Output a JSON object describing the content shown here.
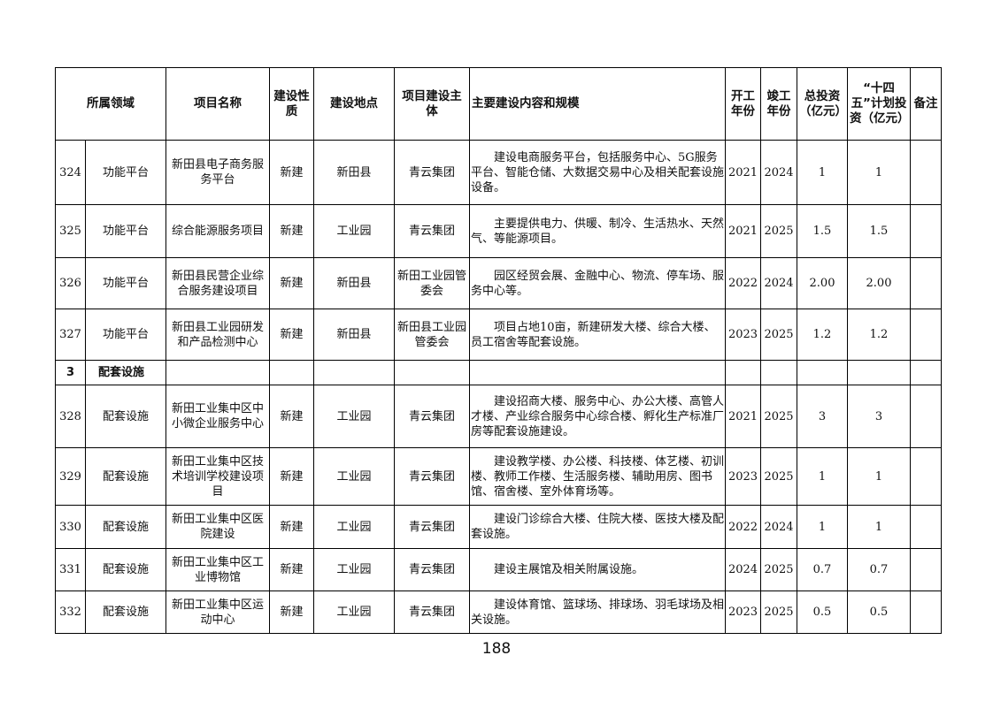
{
  "header": {
    "field": "所属领域",
    "name": "项目名称",
    "nature": "建设性质",
    "location": "建设地点",
    "owner": "项目建设主体",
    "content": "主要建设内容和规模",
    "start": "开工年份",
    "end": "竣工年份",
    "total": "总投资（亿元）",
    "plan": "“十四五”计划投资（亿元）",
    "remark": "备注"
  },
  "rows_a": [
    {
      "no": "324",
      "field": "功能平台",
      "name": "新田县电子商务服务平台",
      "nature": "新建",
      "location": "新田县",
      "owner": "青云集团",
      "content": "建设电商服务平台，包括服务中心、5G服务平台、智能仓储、大数据交易中心及相关配套设施设备。",
      "start": "2021",
      "end": "2024",
      "total": "1",
      "plan": "1",
      "remark": ""
    },
    {
      "no": "325",
      "field": "功能平台",
      "name": "综合能源服务项目",
      "nature": "新建",
      "location": "工业园",
      "owner": "青云集团",
      "content": "主要提供电力、供暖、制冷、生活热水、天然气、等能源项目。",
      "start": "2021",
      "end": "2025",
      "total": "1.5",
      "plan": "1.5",
      "remark": ""
    },
    {
      "no": "326",
      "field": "功能平台",
      "name": "新田县民营企业综合服务建设项目",
      "nature": "新建",
      "location": "新田县",
      "owner": "新田工业园管委会",
      "content": "园区经贸会展、金融中心、物流、停车场、服务中心等。",
      "start": "2022",
      "end": "2024",
      "total": "2.00",
      "plan": "2.00",
      "remark": ""
    },
    {
      "no": "327",
      "field": "功能平台",
      "name": "新田县工业园研发和产品检测中心",
      "nature": "新建",
      "location": "新田县",
      "owner": "新田县工业园管委会",
      "content": "项目占地10亩，新建研发大楼、综合大楼、员工宿舍等配套设施。",
      "start": "2023",
      "end": "2025",
      "total": "1.2",
      "plan": "1.2",
      "remark": ""
    }
  ],
  "section": {
    "no": "3",
    "name": "配套设施"
  },
  "rows_b": [
    {
      "no": "328",
      "field": "配套设施",
      "name": "新田工业集中区中小微企业服务中心",
      "nature": "新建",
      "location": "工业园",
      "owner": "青云集团",
      "content": "建设招商大楼、服务中心、办公大楼、高管人才楼、产业综合服务中心综合楼、孵化生产标准厂房等配套设施建设。",
      "start": "2021",
      "end": "2025",
      "total": "3",
      "plan": "3",
      "remark": ""
    },
    {
      "no": "329",
      "field": "配套设施",
      "name": "新田工业集中区技术培训学校建设项目",
      "nature": "新建",
      "location": "工业园",
      "owner": "青云集团",
      "content": "建设教学楼、办公楼、科技楼、体艺楼、初训楼、教师工作楼、生活服务楼、辅助用房、图书馆、宿舍楼、室外体育场等。",
      "start": "2023",
      "end": "2025",
      "total": "1",
      "plan": "1",
      "remark": ""
    },
    {
      "no": "330",
      "field": "配套设施",
      "name": "新田工业集中区医院建设",
      "nature": "新建",
      "location": "工业园",
      "owner": "青云集团",
      "content": "建设门诊综合大楼、住院大楼、医技大楼及配套设施。",
      "start": "2022",
      "end": "2024",
      "total": "1",
      "plan": "1",
      "remark": ""
    },
    {
      "no": "331",
      "field": "配套设施",
      "name": "新田工业集中区工业博物馆",
      "nature": "新建",
      "location": "工业园",
      "owner": "青云集团",
      "content": "建设主展馆及相关附属设施。",
      "start": "2024",
      "end": "2025",
      "total": "0.7",
      "plan": "0.7",
      "remark": ""
    },
    {
      "no": "332",
      "field": "配套设施",
      "name": "新田工业集中区运动中心",
      "nature": "新建",
      "location": "工业园",
      "owner": "青云集团",
      "content": "建设体育馆、篮球场、排球场、羽毛球场及相关设施。",
      "start": "2023",
      "end": "2025",
      "total": "0.5",
      "plan": "0.5",
      "remark": ""
    }
  ],
  "page_number": "188"
}
